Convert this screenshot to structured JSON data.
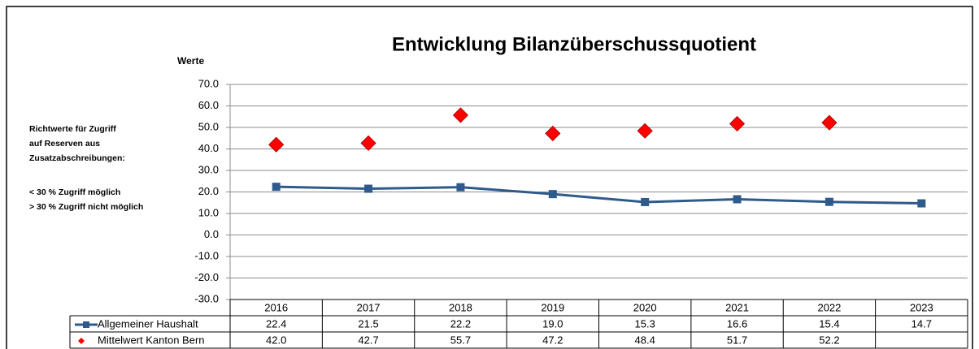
{
  "chart_data": {
    "type": "line",
    "title": "Entwicklung Bilanzüberschussquotient",
    "y_label": "Werte",
    "annotations": [
      "Richtwerte für Zugriff",
      "auf Reserven aus",
      "Zusatzabschreibungen:",
      "< 30 % Zugriff möglich",
      "> 30 % Zugriff nicht möglich"
    ],
    "categories": [
      "2016",
      "2017",
      "2018",
      "2019",
      "2020",
      "2021",
      "2022",
      "2023"
    ],
    "series": [
      {
        "name": "Allgemeiner Haushalt",
        "color": "#2f5a8c",
        "marker": "square",
        "values": [
          22.4,
          21.5,
          22.2,
          19.0,
          15.3,
          16.6,
          15.4,
          14.7
        ],
        "value_labels": [
          "22.4",
          "21.5",
          "22.2",
          "19.0",
          "15.3",
          "16.6",
          "15.4",
          "14.7"
        ]
      },
      {
        "name": "Mittelwert Kanton Bern",
        "color": "#ff0000",
        "marker": "diamond",
        "line": false,
        "values": [
          42.0,
          42.7,
          55.7,
          47.2,
          48.4,
          51.7,
          52.2,
          null
        ],
        "value_labels": [
          "42.0",
          "42.7",
          "55.7",
          "47.2",
          "48.4",
          "51.7",
          "52.2",
          null
        ]
      }
    ],
    "ylim": [
      -30,
      70
    ],
    "yticks": [
      {
        "value": -30,
        "label": "-30.0"
      },
      {
        "value": -20,
        "label": "-20.0"
      },
      {
        "value": -10,
        "label": "-10.0"
      },
      {
        "value": 0,
        "label": "0.0"
      },
      {
        "value": 10,
        "label": "10.0"
      },
      {
        "value": 20,
        "label": "20.0"
      },
      {
        "value": 30,
        "label": "30.0"
      },
      {
        "value": 40,
        "label": "40.0"
      },
      {
        "value": 50,
        "label": "50.0"
      },
      {
        "value": 60,
        "label": "60.0"
      },
      {
        "value": 70,
        "label": "70.0"
      }
    ],
    "grid": true,
    "data_table": true
  }
}
